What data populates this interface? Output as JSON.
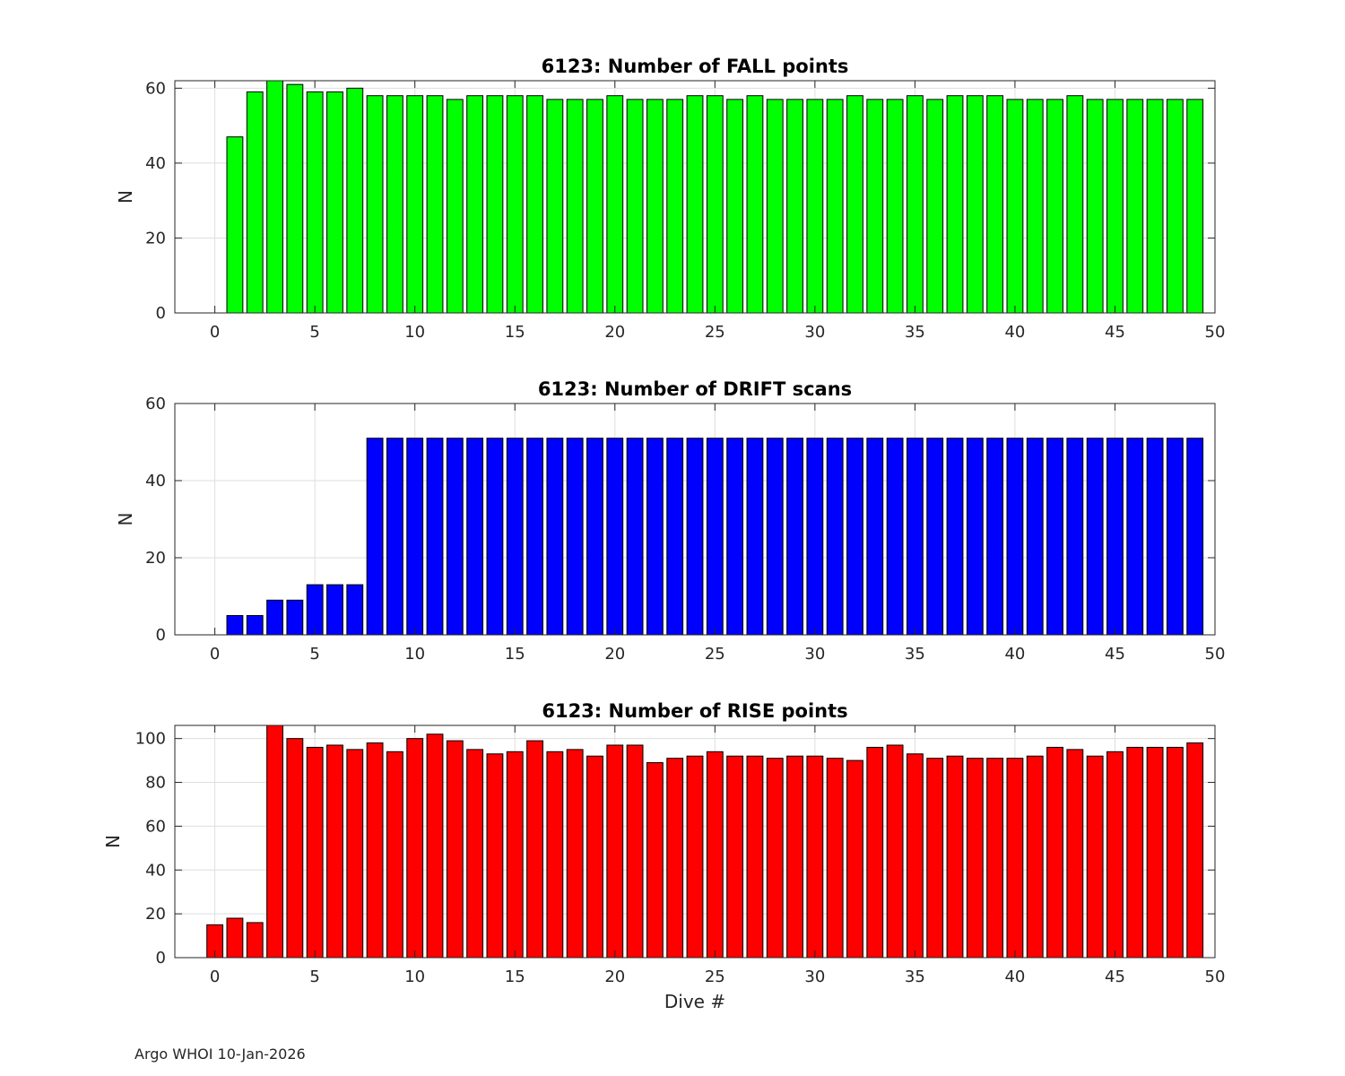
{
  "chart_data": [
    {
      "type": "bar",
      "title": "6123: Number of FALL points",
      "xlabel": "",
      "ylabel": "N",
      "xlim": [
        -2,
        50
      ],
      "ylim": [
        0,
        62
      ],
      "xticks": [
        0,
        5,
        10,
        15,
        20,
        25,
        30,
        35,
        40,
        45,
        50
      ],
      "yticks": [
        0,
        20,
        40,
        60
      ],
      "grid": true,
      "bar_color": "#00ff00",
      "x": [
        1,
        2,
        3,
        4,
        5,
        6,
        7,
        8,
        9,
        10,
        11,
        12,
        13,
        14,
        15,
        16,
        17,
        18,
        19,
        20,
        21,
        22,
        23,
        24,
        25,
        26,
        27,
        28,
        29,
        30,
        31,
        32,
        33,
        34,
        35,
        36,
        37,
        38,
        39,
        40,
        41,
        42,
        43,
        44,
        45,
        46,
        47,
        48,
        49
      ],
      "values": [
        47,
        59,
        62,
        61,
        59,
        59,
        60,
        58,
        58,
        58,
        58,
        57,
        58,
        58,
        58,
        58,
        57,
        57,
        57,
        58,
        57,
        57,
        57,
        58,
        58,
        57,
        58,
        57,
        57,
        57,
        57,
        58,
        57,
        57,
        58,
        57,
        58,
        58,
        58,
        57,
        57,
        57,
        58,
        57,
        57,
        57,
        57,
        57,
        57
      ]
    },
    {
      "type": "bar",
      "title": "6123: Number of DRIFT scans",
      "xlabel": "",
      "ylabel": "N",
      "xlim": [
        -2,
        50
      ],
      "ylim": [
        0,
        60
      ],
      "xticks": [
        0,
        5,
        10,
        15,
        20,
        25,
        30,
        35,
        40,
        45,
        50
      ],
      "yticks": [
        0,
        20,
        40,
        60
      ],
      "grid": true,
      "bar_color": "#0000ff",
      "x": [
        -1,
        0,
        1,
        2,
        3,
        4,
        5,
        6,
        7,
        8,
        9,
        10,
        11,
        12,
        13,
        14,
        15,
        16,
        17,
        18,
        19,
        20,
        21,
        22,
        23,
        24,
        25,
        26,
        27,
        28,
        29,
        30,
        31,
        32,
        33,
        34,
        35,
        36,
        37,
        38,
        39,
        40,
        41,
        42,
        43,
        44,
        45,
        46,
        47,
        48,
        49
      ],
      "values": [
        0,
        0,
        5,
        5,
        9,
        9,
        13,
        13,
        13,
        51,
        51,
        51,
        51,
        51,
        51,
        51,
        51,
        51,
        51,
        51,
        51,
        51,
        51,
        51,
        51,
        51,
        51,
        51,
        51,
        51,
        51,
        51,
        51,
        51,
        51,
        51,
        51,
        51,
        51,
        51,
        51,
        51,
        51,
        51,
        51,
        51,
        51,
        51,
        51,
        51,
        51
      ]
    },
    {
      "type": "bar",
      "title": "6123: Number of RISE points",
      "xlabel": "Dive #",
      "ylabel": "N",
      "xlim": [
        -2,
        50
      ],
      "ylim": [
        0,
        106
      ],
      "xticks": [
        0,
        5,
        10,
        15,
        20,
        25,
        30,
        35,
        40,
        45,
        50
      ],
      "yticks": [
        0,
        20,
        40,
        60,
        80,
        100
      ],
      "grid": true,
      "bar_color": "#ff0000",
      "x": [
        0,
        1,
        2,
        3,
        4,
        5,
        6,
        7,
        8,
        9,
        10,
        11,
        12,
        13,
        14,
        15,
        16,
        17,
        18,
        19,
        20,
        21,
        22,
        23,
        24,
        25,
        26,
        27,
        28,
        29,
        30,
        31,
        32,
        33,
        34,
        35,
        36,
        37,
        38,
        39,
        40,
        41,
        42,
        43,
        44,
        45,
        46,
        47,
        48,
        49
      ],
      "values": [
        15,
        18,
        16,
        106,
        100,
        96,
        97,
        95,
        98,
        94,
        100,
        102,
        99,
        95,
        93,
        94,
        99,
        94,
        95,
        92,
        97,
        97,
        89,
        91,
        92,
        94,
        92,
        92,
        91,
        92,
        92,
        91,
        90,
        96,
        97,
        93,
        91,
        92,
        91,
        91,
        91,
        92,
        96,
        95,
        92,
        94,
        96,
        96,
        96,
        98
      ]
    }
  ],
  "footer": "Argo WHOI 10-Jan-2026"
}
